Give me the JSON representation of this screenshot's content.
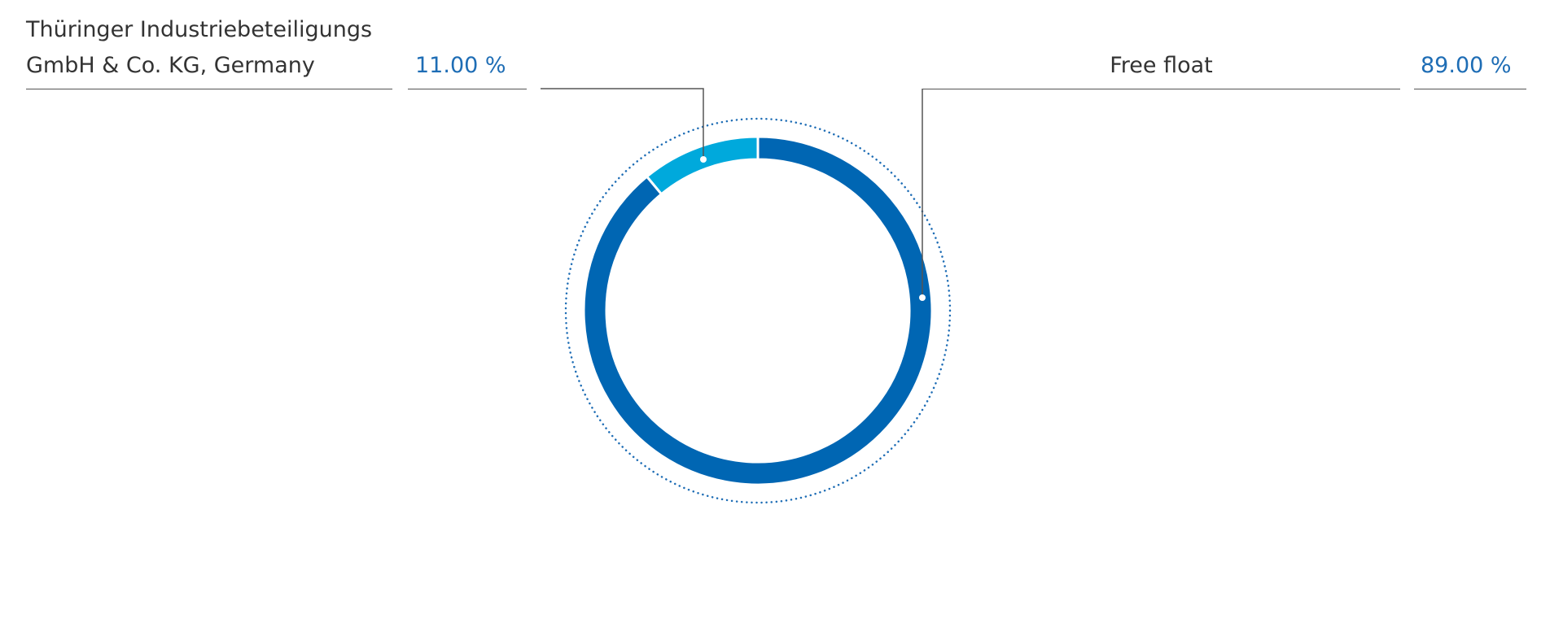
{
  "chart_data": {
    "type": "pie",
    "categories": [
      "Thüringer Industriebeteiligungs GmbH & Co. KG, Germany",
      "Free float"
    ],
    "values": [
      11,
      89
    ],
    "value_labels": [
      "11.00 %",
      "89.00 %"
    ],
    "colors": [
      "#00a9dc",
      "#0066b3"
    ]
  }
}
